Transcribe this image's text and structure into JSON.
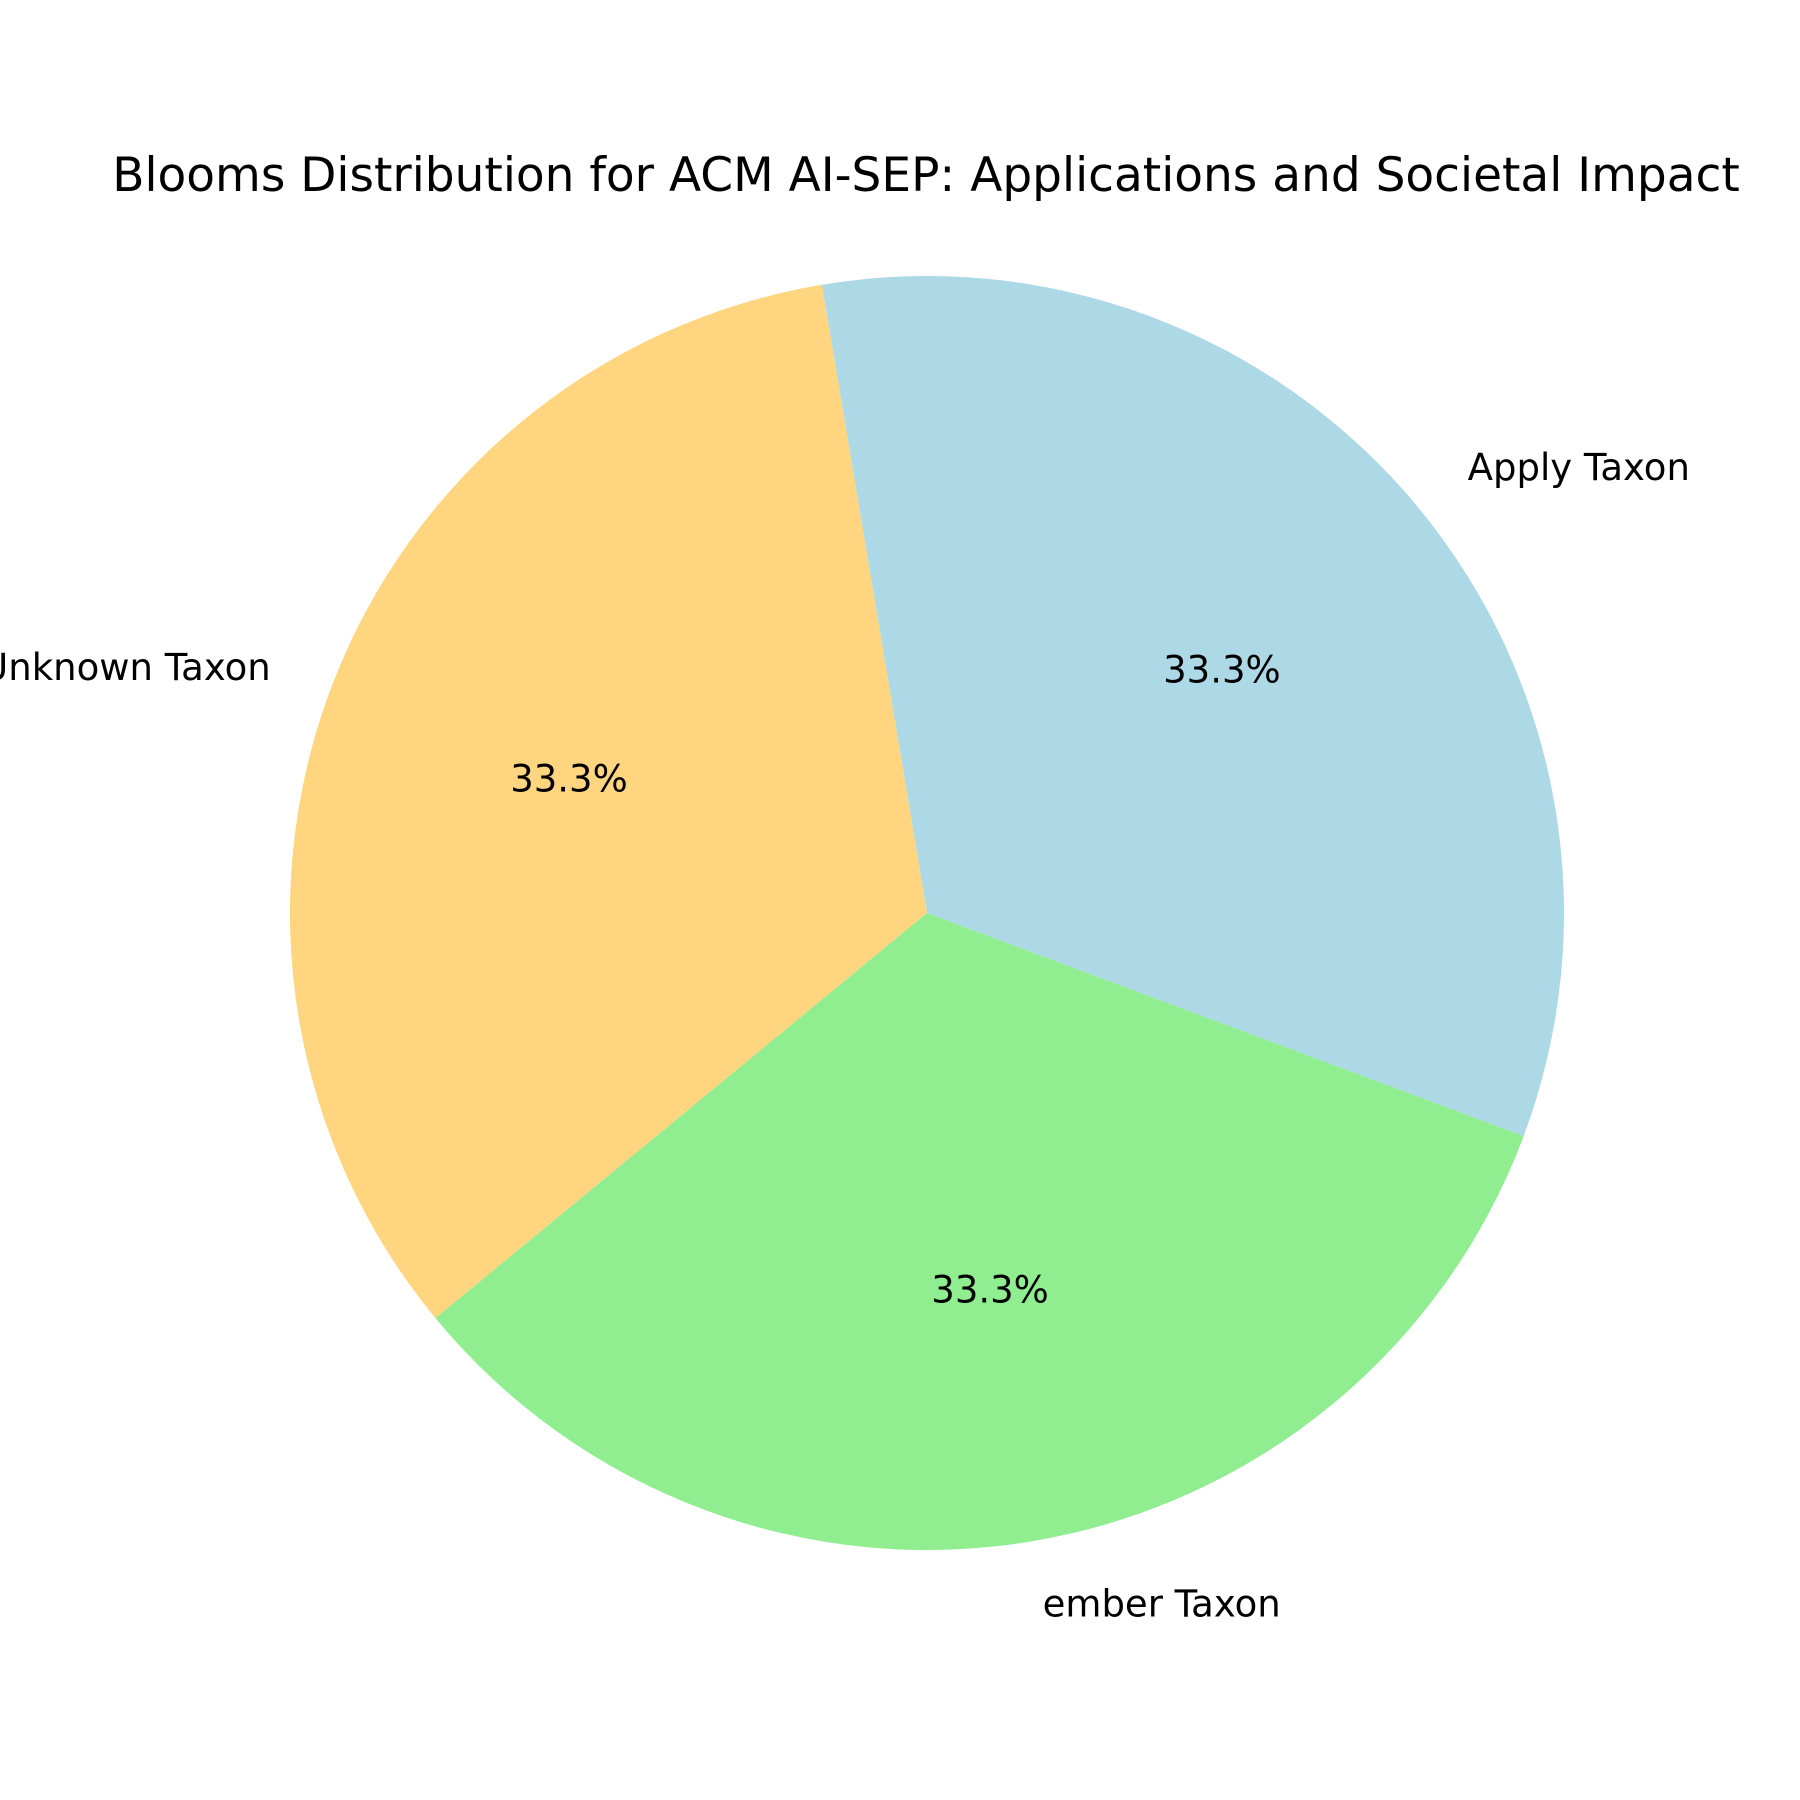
{
  "chart_data": {
    "type": "pie",
    "title": "Blooms Distribution for ACM AI-SEP: Applications and Societal Impact",
    "slices": [
      {
        "label": "Apply Taxon",
        "value": 33.3,
        "pct_label": "33.3%",
        "color": "#add8e6"
      },
      {
        "label": "Unknown Taxon",
        "value": 33.3,
        "pct_label": "33.3%",
        "color": "#ffd580"
      },
      {
        "label": "Remember Taxon",
        "value": 33.3,
        "pct_label": "33.3%",
        "color": "#90ee90"
      }
    ],
    "visible_labels": [
      "Apply Taxon",
      "Unknown Taxon",
      "ember Taxon"
    ],
    "legend": "none",
    "grid": false
  }
}
